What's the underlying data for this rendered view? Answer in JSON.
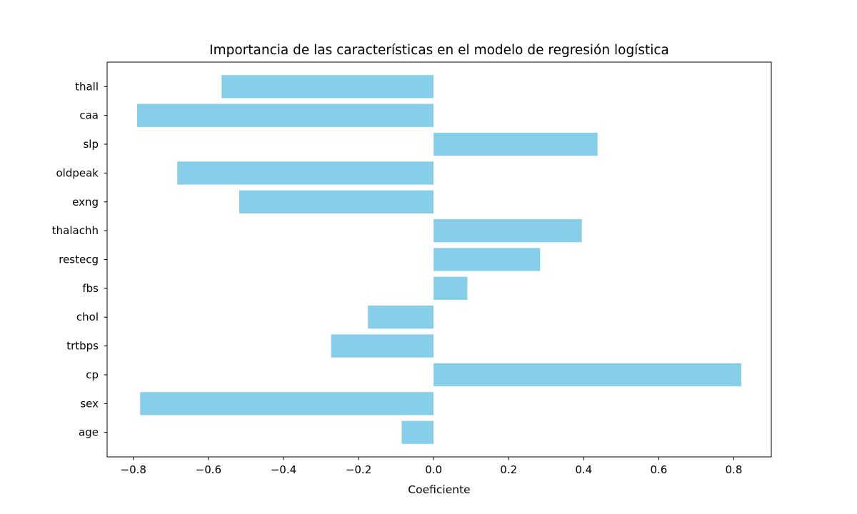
{
  "chart_data": {
    "type": "bar",
    "orientation": "horizontal",
    "title": "Importancia de las características en el modelo de regresión logística",
    "xlabel": "Coeficiente",
    "ylabel": "",
    "categories": [
      "age",
      "sex",
      "cp",
      "trtbps",
      "chol",
      "fbs",
      "restecg",
      "thalachh",
      "exng",
      "oldpeak",
      "slp",
      "caa",
      "thall"
    ],
    "values": [
      -0.085,
      -0.782,
      0.82,
      -0.273,
      -0.175,
      0.09,
      0.284,
      0.395,
      -0.518,
      -0.683,
      0.437,
      -0.79,
      -0.565
    ],
    "xlim": [
      -0.87,
      0.9
    ],
    "xticks": [
      -0.8,
      -0.6,
      -0.4,
      -0.2,
      0.0,
      0.2,
      0.4,
      0.6,
      0.8
    ],
    "xtick_labels": [
      "−0.8",
      "−0.6",
      "−0.4",
      "−0.2",
      "0.0",
      "0.2",
      "0.4",
      "0.6",
      "0.8"
    ],
    "bar_color": "#87CEEB",
    "grid": false,
    "legend": "none"
  }
}
